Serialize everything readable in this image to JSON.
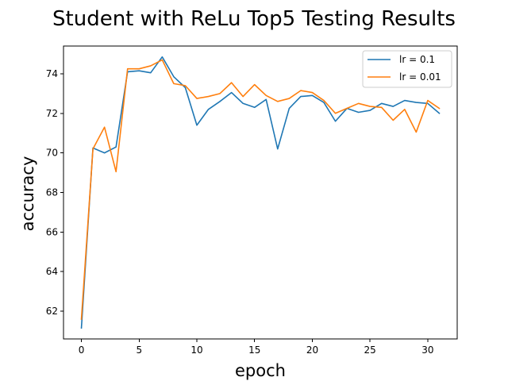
{
  "chart_data": {
    "type": "line",
    "title": "Student with ReLu Top5 Testing Results",
    "xlabel": "epoch",
    "ylabel": "accuracy",
    "xlim": [
      -1.55,
      32.55
    ],
    "ylim": [
      60.6,
      75.4
    ],
    "xticks": [
      0,
      5,
      10,
      15,
      20,
      25,
      30
    ],
    "yticks": [
      62,
      64,
      66,
      68,
      70,
      72,
      74
    ],
    "legend_position": "top-right",
    "grid": false,
    "x": [
      0,
      1,
      2,
      3,
      4,
      5,
      6,
      7,
      8,
      9,
      10,
      11,
      12,
      13,
      14,
      15,
      16,
      17,
      18,
      19,
      20,
      21,
      22,
      23,
      24,
      25,
      26,
      27,
      28,
      29,
      30,
      31
    ],
    "series": [
      {
        "name": "lr = 0.1",
        "color": "#1f77b4",
        "values": [
          61.15,
          70.25,
          70.0,
          70.3,
          74.1,
          74.15,
          74.05,
          74.85,
          73.85,
          73.3,
          71.4,
          72.2,
          72.6,
          73.05,
          72.5,
          72.3,
          72.7,
          70.2,
          72.25,
          72.85,
          72.9,
          72.55,
          71.6,
          72.25,
          72.05,
          72.15,
          72.5,
          72.35,
          72.65,
          72.55,
          72.5,
          72.0
        ]
      },
      {
        "name": "lr = 0.01",
        "color": "#ff7f0e",
        "values": [
          61.6,
          70.2,
          71.3,
          69.05,
          74.25,
          74.25,
          74.4,
          74.7,
          73.5,
          73.4,
          72.75,
          72.85,
          73.0,
          73.55,
          72.85,
          73.45,
          72.9,
          72.6,
          72.75,
          73.15,
          73.05,
          72.65,
          72.0,
          72.25,
          72.5,
          72.35,
          72.3,
          71.65,
          72.2,
          71.05,
          72.65,
          72.25
        ]
      }
    ]
  }
}
